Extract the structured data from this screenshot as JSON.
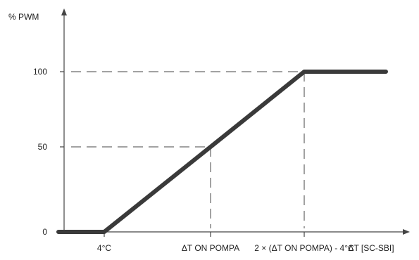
{
  "chart_data": {
    "type": "line",
    "ylabel": "% PWM",
    "xlabel": "ΔT [SC-SBI]",
    "y_ticks": [
      "0",
      "50",
      "100"
    ],
    "x_ticks": [
      "4°C",
      "ΔT ON POMPA",
      "2 × (ΔT ON POMPA) - 4°C"
    ],
    "series": [
      {
        "points": [
          {
            "x": "0",
            "y": 0
          },
          {
            "x": "4°C",
            "y": 0
          },
          {
            "x": "ΔT ON POMPA",
            "y": 50
          },
          {
            "x": "2 × (ΔT ON POMPA) - 4°C",
            "y": 100
          },
          {
            "x": "end",
            "y": 100
          }
        ]
      }
    ],
    "reference_lines": [
      {
        "type": "horizontal",
        "y": 100,
        "style": "dashed"
      },
      {
        "type": "horizontal",
        "y": 50,
        "style": "dashed"
      },
      {
        "type": "vertical",
        "x": "ΔT ON POMPA",
        "style": "dashed"
      },
      {
        "type": "vertical",
        "x": "2 × (ΔT ON POMPA) - 4°C",
        "style": "dashed"
      }
    ],
    "grid": false,
    "legend": "none"
  }
}
